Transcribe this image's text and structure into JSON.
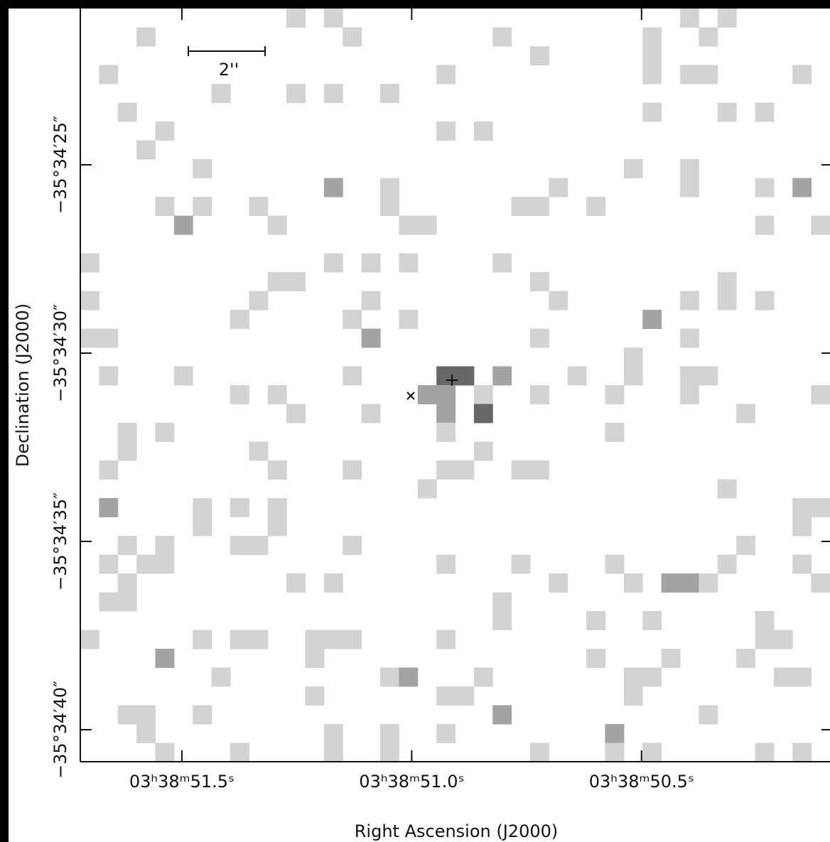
{
  "chart_data": {
    "type": "image",
    "xlabel": "Right Ascension (J2000)",
    "ylabel": "Declination (J2000)",
    "scalebar_label": "2''",
    "xlim": [
      51.721,
      50.09
    ],
    "ylim": [
      20.85,
      40.85
    ],
    "xticks": [
      {
        "value": 51.5,
        "label": "03ʰ38ᵐ51.5ˢ"
      },
      {
        "value": 51.0,
        "label": "03ʰ38ᵐ51.0ˢ"
      },
      {
        "value": 50.5,
        "label": "03ʰ38ᵐ50.5ˢ"
      }
    ],
    "yticks": [
      {
        "value": 25,
        "label": "−35°34′25″"
      },
      {
        "value": 30,
        "label": "−35°34′30″"
      },
      {
        "value": 35,
        "label": "−35°34′35″"
      },
      {
        "value": 40,
        "label": "−35°34′40″"
      }
    ],
    "grid_size": [
      40,
      40
    ],
    "level_colors": [
      "#d3d3d3",
      "#a3a3a3",
      "#676767"
    ],
    "pixels": [
      [
        11,
        0,
        1
      ],
      [
        13,
        0,
        1
      ],
      [
        32,
        0,
        1
      ],
      [
        34,
        0,
        1
      ],
      [
        3,
        1,
        1
      ],
      [
        14,
        1,
        1
      ],
      [
        22,
        1,
        1
      ],
      [
        30,
        1,
        1
      ],
      [
        33,
        1,
        1
      ],
      [
        24,
        2,
        1
      ],
      [
        30,
        2,
        1
      ],
      [
        1,
        3,
        1
      ],
      [
        19,
        3,
        1
      ],
      [
        30,
        3,
        1
      ],
      [
        32,
        3,
        1
      ],
      [
        33,
        3,
        1
      ],
      [
        38,
        3,
        1
      ],
      [
        7,
        4,
        1
      ],
      [
        11,
        4,
        1
      ],
      [
        13,
        4,
        1
      ],
      [
        16,
        4,
        1
      ],
      [
        2,
        5,
        1
      ],
      [
        30,
        5,
        1
      ],
      [
        34,
        5,
        1
      ],
      [
        36,
        5,
        1
      ],
      [
        4,
        6,
        1
      ],
      [
        19,
        6,
        1
      ],
      [
        21,
        6,
        1
      ],
      [
        3,
        7,
        1
      ],
      [
        6,
        8,
        1
      ],
      [
        29,
        8,
        1
      ],
      [
        32,
        8,
        1
      ],
      [
        13,
        9,
        2
      ],
      [
        16,
        9,
        1
      ],
      [
        25,
        9,
        1
      ],
      [
        32,
        9,
        1
      ],
      [
        36,
        9,
        1
      ],
      [
        38,
        9,
        2
      ],
      [
        4,
        10,
        1
      ],
      [
        6,
        10,
        1
      ],
      [
        9,
        10,
        1
      ],
      [
        16,
        10,
        1
      ],
      [
        23,
        10,
        1
      ],
      [
        24,
        10,
        1
      ],
      [
        27,
        10,
        1
      ],
      [
        5,
        11,
        2
      ],
      [
        10,
        11,
        1
      ],
      [
        17,
        11,
        1
      ],
      [
        18,
        11,
        1
      ],
      [
        36,
        11,
        1
      ],
      [
        39,
        11,
        1
      ],
      [
        0,
        13,
        1
      ],
      [
        13,
        13,
        1
      ],
      [
        15,
        13,
        1
      ],
      [
        17,
        13,
        1
      ],
      [
        22,
        13,
        1
      ],
      [
        10,
        14,
        1
      ],
      [
        11,
        14,
        1
      ],
      [
        24,
        14,
        1
      ],
      [
        34,
        14,
        1
      ],
      [
        0,
        15,
        1
      ],
      [
        9,
        15,
        1
      ],
      [
        15,
        15,
        1
      ],
      [
        25,
        15,
        1
      ],
      [
        32,
        15,
        1
      ],
      [
        34,
        15,
        1
      ],
      [
        36,
        15,
        1
      ],
      [
        8,
        16,
        1
      ],
      [
        14,
        16,
        1
      ],
      [
        17,
        16,
        1
      ],
      [
        30,
        16,
        2
      ],
      [
        0,
        17,
        1
      ],
      [
        1,
        17,
        1
      ],
      [
        15,
        17,
        2
      ],
      [
        24,
        17,
        1
      ],
      [
        32,
        17,
        1
      ],
      [
        29,
        18,
        1
      ],
      [
        1,
        19,
        1
      ],
      [
        5,
        19,
        1
      ],
      [
        14,
        19,
        1
      ],
      [
        19,
        19,
        3
      ],
      [
        20,
        19,
        3
      ],
      [
        22,
        19,
        2
      ],
      [
        26,
        19,
        1
      ],
      [
        29,
        19,
        1
      ],
      [
        32,
        19,
        1
      ],
      [
        33,
        19,
        1
      ],
      [
        8,
        20,
        1
      ],
      [
        10,
        20,
        1
      ],
      [
        18,
        20,
        2
      ],
      [
        19,
        20,
        2
      ],
      [
        21,
        20,
        1
      ],
      [
        24,
        20,
        1
      ],
      [
        28,
        20,
        1
      ],
      [
        32,
        20,
        1
      ],
      [
        39,
        20,
        1
      ],
      [
        11,
        21,
        1
      ],
      [
        15,
        21,
        1
      ],
      [
        19,
        21,
        2
      ],
      [
        21,
        21,
        3
      ],
      [
        35,
        21,
        1
      ],
      [
        2,
        22,
        1
      ],
      [
        4,
        22,
        1
      ],
      [
        19,
        22,
        1
      ],
      [
        28,
        22,
        1
      ],
      [
        2,
        23,
        1
      ],
      [
        9,
        23,
        1
      ],
      [
        21,
        23,
        1
      ],
      [
        1,
        24,
        1
      ],
      [
        10,
        24,
        1
      ],
      [
        14,
        24,
        1
      ],
      [
        19,
        24,
        1
      ],
      [
        20,
        24,
        1
      ],
      [
        23,
        24,
        1
      ],
      [
        24,
        24,
        1
      ],
      [
        18,
        25,
        1
      ],
      [
        34,
        25,
        1
      ],
      [
        1,
        26,
        2
      ],
      [
        6,
        26,
        1
      ],
      [
        8,
        26,
        1
      ],
      [
        10,
        26,
        1
      ],
      [
        38,
        26,
        1
      ],
      [
        39,
        26,
        1
      ],
      [
        6,
        27,
        1
      ],
      [
        10,
        27,
        1
      ],
      [
        38,
        27,
        1
      ],
      [
        2,
        28,
        1
      ],
      [
        4,
        28,
        1
      ],
      [
        8,
        28,
        1
      ],
      [
        9,
        28,
        1
      ],
      [
        14,
        28,
        1
      ],
      [
        35,
        28,
        1
      ],
      [
        1,
        29,
        1
      ],
      [
        3,
        29,
        1
      ],
      [
        4,
        29,
        1
      ],
      [
        19,
        29,
        1
      ],
      [
        23,
        29,
        1
      ],
      [
        28,
        29,
        1
      ],
      [
        34,
        29,
        1
      ],
      [
        38,
        29,
        1
      ],
      [
        2,
        30,
        1
      ],
      [
        11,
        30,
        1
      ],
      [
        13,
        30,
        1
      ],
      [
        25,
        30,
        1
      ],
      [
        29,
        30,
        1
      ],
      [
        31,
        30,
        2
      ],
      [
        32,
        30,
        2
      ],
      [
        33,
        30,
        1
      ],
      [
        39,
        30,
        1
      ],
      [
        1,
        31,
        1
      ],
      [
        2,
        31,
        1
      ],
      [
        22,
        31,
        1
      ],
      [
        22,
        32,
        1
      ],
      [
        27,
        32,
        1
      ],
      [
        30,
        32,
        1
      ],
      [
        36,
        32,
        1
      ],
      [
        0,
        33,
        1
      ],
      [
        6,
        33,
        1
      ],
      [
        8,
        33,
        1
      ],
      [
        9,
        33,
        1
      ],
      [
        12,
        33,
        1
      ],
      [
        13,
        33,
        1
      ],
      [
        14,
        33,
        1
      ],
      [
        19,
        33,
        1
      ],
      [
        36,
        33,
        1
      ],
      [
        37,
        33,
        1
      ],
      [
        4,
        34,
        2
      ],
      [
        12,
        34,
        1
      ],
      [
        27,
        34,
        1
      ],
      [
        31,
        34,
        1
      ],
      [
        35,
        34,
        1
      ],
      [
        7,
        35,
        1
      ],
      [
        16,
        35,
        1
      ],
      [
        17,
        35,
        2
      ],
      [
        21,
        35,
        1
      ],
      [
        29,
        35,
        1
      ],
      [
        30,
        35,
        1
      ],
      [
        37,
        35,
        1
      ],
      [
        38,
        35,
        1
      ],
      [
        12,
        36,
        1
      ],
      [
        19,
        36,
        1
      ],
      [
        20,
        36,
        1
      ],
      [
        29,
        36,
        1
      ],
      [
        2,
        37,
        1
      ],
      [
        3,
        37,
        1
      ],
      [
        6,
        37,
        1
      ],
      [
        22,
        37,
        2
      ],
      [
        33,
        37,
        1
      ],
      [
        3,
        38,
        1
      ],
      [
        13,
        38,
        1
      ],
      [
        16,
        38,
        1
      ],
      [
        19,
        38,
        1
      ],
      [
        28,
        38,
        2
      ],
      [
        4,
        39,
        1
      ],
      [
        8,
        39,
        1
      ],
      [
        13,
        39,
        1
      ],
      [
        16,
        39,
        1
      ],
      [
        24,
        39,
        1
      ],
      [
        28,
        39,
        1
      ],
      [
        30,
        39,
        1
      ],
      [
        36,
        39,
        1
      ],
      [
        38,
        39,
        1
      ]
    ]
  }
}
